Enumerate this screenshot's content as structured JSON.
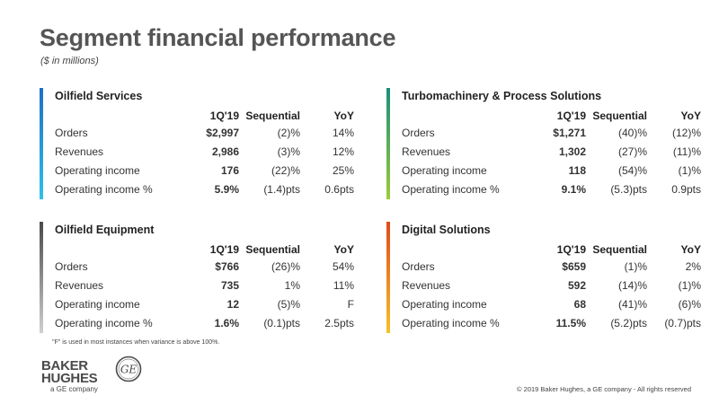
{
  "page": {
    "title": "Segment financial performance",
    "subtitle": "($ in millions)"
  },
  "columns": {
    "c1": "1Q'19",
    "c2": "Sequential",
    "c3": "YoY"
  },
  "panels": [
    {
      "name": "Oilfield Services",
      "rows": [
        {
          "label": "Orders",
          "v1": "$2,997",
          "v2": "(2)%",
          "v3": "14%"
        },
        {
          "label": "Revenues",
          "v1": "2,986",
          "v2": "(3)%",
          "v3": "12%"
        },
        {
          "label": "Operating income",
          "v1": "176",
          "v2": "(22)%",
          "v3": "25%"
        },
        {
          "label": "Operating income %",
          "v1": "5.9%",
          "v2": "(1.4)pts",
          "v3": "0.6pts"
        }
      ]
    },
    {
      "name": "Turbomachinery & Process Solutions",
      "rows": [
        {
          "label": "Orders",
          "v1": "$1,271",
          "v2": "(40)%",
          "v3": "(12)%"
        },
        {
          "label": "Revenues",
          "v1": "1,302",
          "v2": "(27)%",
          "v3": "(11)%"
        },
        {
          "label": "Operating income",
          "v1": "118",
          "v2": "(54)%",
          "v3": "(1)%"
        },
        {
          "label": "Operating income %",
          "v1": "9.1%",
          "v2": "(5.3)pts",
          "v3": "0.9pts"
        }
      ]
    },
    {
      "name": "Oilfield Equipment",
      "rows": [
        {
          "label": "Orders",
          "v1": "$766",
          "v2": "(26)%",
          "v3": "54%"
        },
        {
          "label": "Revenues",
          "v1": "735",
          "v2": "1%",
          "v3": "11%"
        },
        {
          "label": "Operating income",
          "v1": "12",
          "v2": "(5)%",
          "v3": "F"
        },
        {
          "label": "Operating income %",
          "v1": "1.6%",
          "v2": "(0.1)pts",
          "v3": "2.5pts"
        }
      ]
    },
    {
      "name": "Digital Solutions",
      "rows": [
        {
          "label": "Orders",
          "v1": "$659",
          "v2": "(1)%",
          "v3": "2%"
        },
        {
          "label": "Revenues",
          "v1": "592",
          "v2": "(14)%",
          "v3": "(1)%"
        },
        {
          "label": "Operating income",
          "v1": "68",
          "v2": "(41)%",
          "v3": "(6)%"
        },
        {
          "label": "Operating income %",
          "v1": "11.5%",
          "v2": "(5.2)pts",
          "v3": "(0.7)pts"
        }
      ]
    }
  ],
  "colors": {
    "oilfield_services": [
      "#1e6fc4",
      "#2fc0ec"
    ],
    "turbomachinery": [
      "#1a8f7a",
      "#9ccc3a"
    ],
    "oilfield_equipment": [
      "#4a4a4a",
      "#cfcfcf"
    ],
    "digital_solutions": [
      "#e24a1a",
      "#f5c22a"
    ],
    "row_divider": "#cccccc"
  },
  "footnote": "\"F\" is used in most instances when variance is above 100%.",
  "logo": {
    "line1": "BAKER",
    "line2": "HUGHES",
    "line3": "a GE company",
    "ge_mark": "GE"
  },
  "copyright": "© 2019 Baker Hughes, a GE company - All rights reserved"
}
